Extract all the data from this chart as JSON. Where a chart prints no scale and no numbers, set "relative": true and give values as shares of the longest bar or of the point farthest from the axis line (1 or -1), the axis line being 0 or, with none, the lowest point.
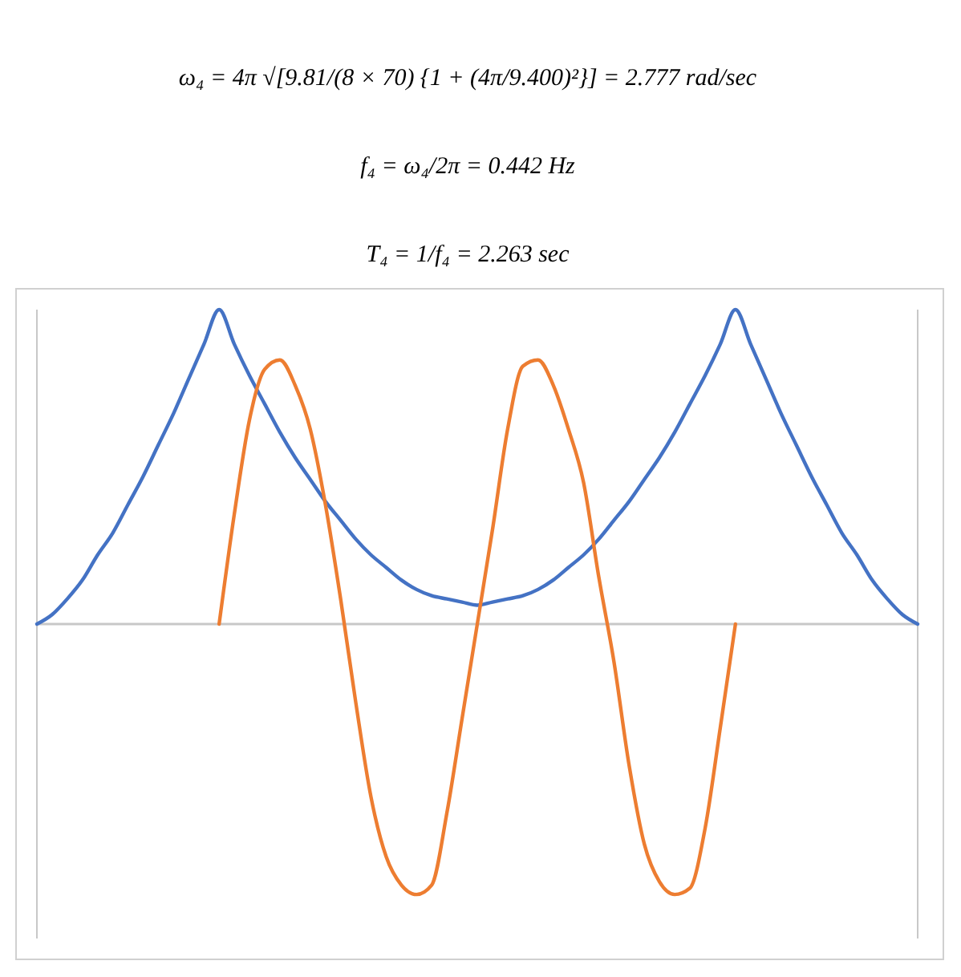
{
  "chart_data": {
    "type": "line",
    "relative": true,
    "annotations": [
      "ω₄ = 4π √[9.81/(8 × 70) {1 + (4π/9.400)²}] = 2.777 rad/sec",
      "f₄ = ω₄/2π = 0.442 Hz",
      "T₄ = 1/f₄ = 2.263 sec"
    ],
    "categories": [
      null,
      null,
      null,
      null,
      null,
      null,
      null,
      null,
      null,
      null,
      null,
      null,
      null,
      null,
      null,
      null,
      null,
      null,
      null,
      null,
      null,
      null,
      null,
      null,
      null,
      null,
      null,
      null,
      null,
      null,
      null,
      null,
      null,
      null,
      null,
      null,
      null,
      null,
      null,
      null,
      null,
      null,
      null,
      null,
      null,
      null,
      null,
      null,
      null,
      null,
      null,
      null,
      null,
      null,
      null,
      null,
      null,
      null,
      null
    ],
    "series": [
      {
        "color": "#4472c4",
        "values": [
          0,
          0.03,
          0.08,
          0.14,
          0.22,
          0.29,
          0.38,
          0.47,
          0.57,
          0.67,
          0.78,
          0.89,
          1,
          0.89,
          0.79,
          0.7,
          0.61,
          0.53,
          0.46,
          0.39,
          0.33,
          0.27,
          0.22,
          0.18,
          0.14,
          0.11,
          0.09,
          0.08,
          0.07,
          0.06,
          0.07,
          0.08,
          0.09,
          0.11,
          0.14,
          0.18,
          0.22,
          0.27,
          0.33,
          0.39,
          0.46,
          0.53,
          0.61,
          0.7,
          0.79,
          0.89,
          1,
          0.89,
          0.78,
          0.67,
          0.57,
          0.47,
          0.38,
          0.29,
          0.22,
          0.14,
          0.08,
          0.03,
          0
        ]
      },
      {
        "color": "#ed7d31",
        "values": [
          null,
          null,
          null,
          null,
          null,
          null,
          null,
          null,
          null,
          null,
          null,
          null,
          0,
          0.35,
          0.65,
          0.81,
          0.84,
          0.76,
          0.62,
          0.38,
          0.08,
          -0.25,
          -0.55,
          -0.74,
          -0.83,
          -0.86,
          -0.83,
          -0.6,
          -0.3,
          0,
          0.3,
          0.62,
          0.82,
          0.84,
          0.76,
          0.62,
          0.45,
          0.15,
          -0.12,
          -0.45,
          -0.7,
          -0.82,
          -0.86,
          -0.84,
          -0.65,
          -0.33,
          0,
          null,
          null,
          null,
          null,
          null,
          null,
          null,
          null,
          null,
          null,
          null,
          null
        ]
      }
    ]
  }
}
